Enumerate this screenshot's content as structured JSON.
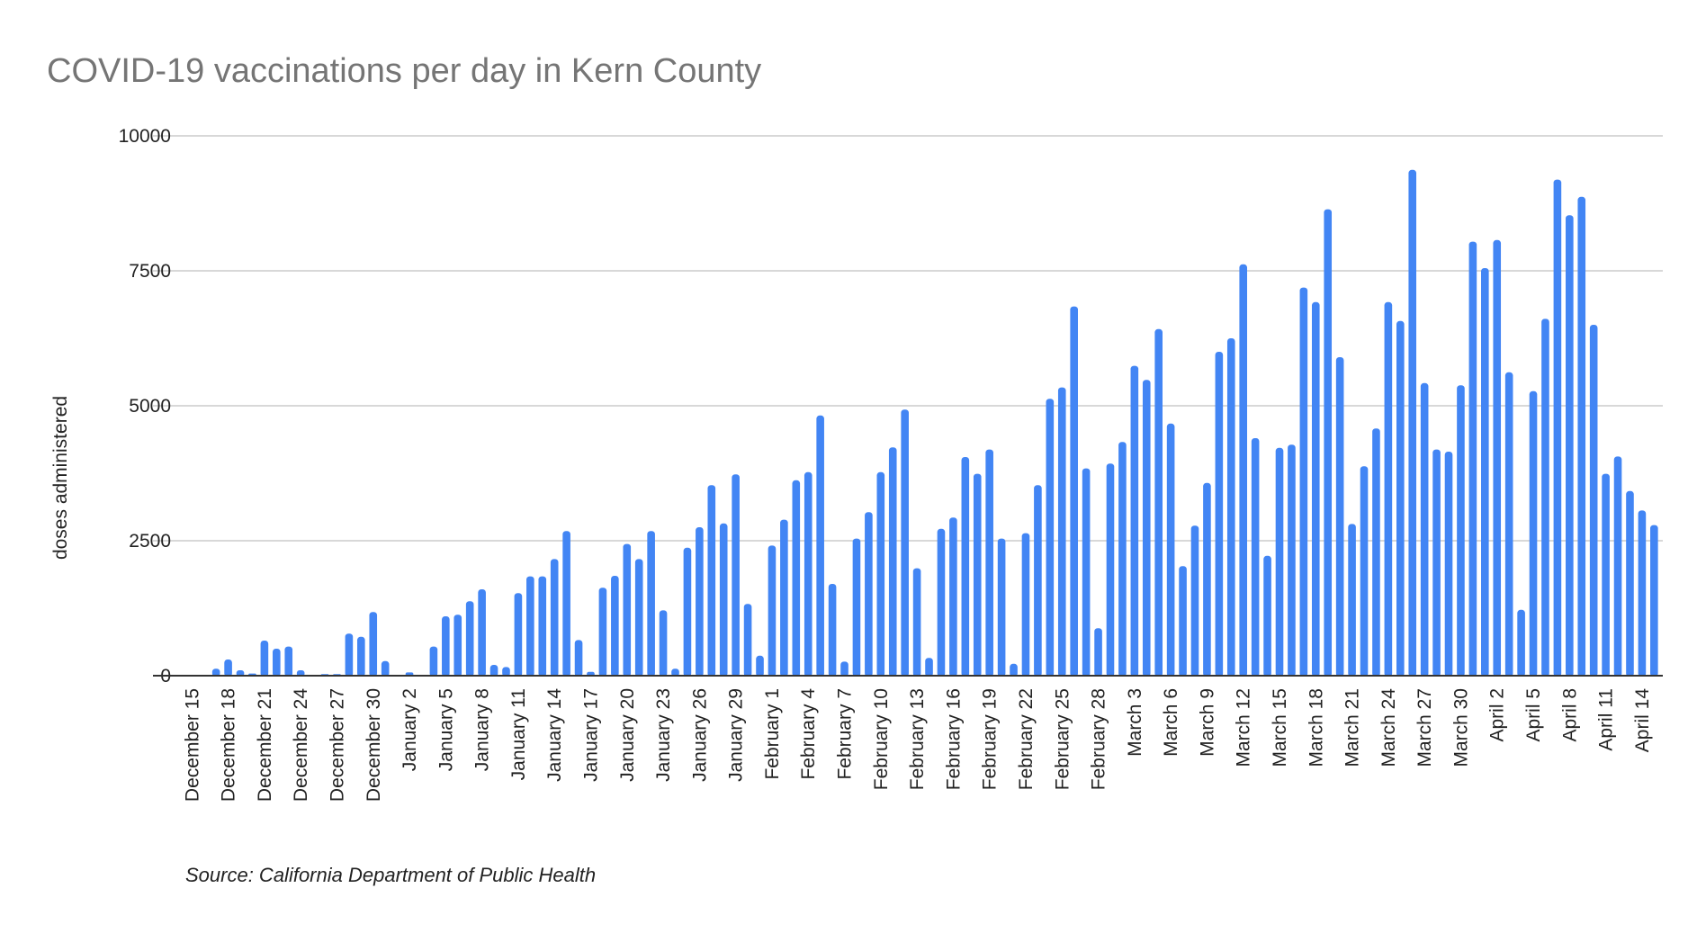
{
  "chart_data": {
    "type": "bar",
    "title": "COVID-19 vaccinations per day in Kern County",
    "xlabel": "",
    "ylabel": "doses administered",
    "ylim": [
      0,
      10000
    ],
    "yticks": [
      0,
      2500,
      5000,
      7500,
      10000
    ],
    "grid": true,
    "legend": "none",
    "bar_color": "#4285f4",
    "tick_every": 3,
    "x_tick_labels": [
      "December 15",
      "December 18",
      "December 21",
      "December 24",
      "December 27",
      "December 30",
      "January 2",
      "January 5",
      "January 8",
      "January 11",
      "January 14",
      "January 17",
      "January 20",
      "January 23",
      "January 26",
      "January 29",
      "February 1",
      "February 4",
      "February 7",
      "February 10",
      "February 13",
      "February 16",
      "February 19",
      "February 22",
      "February 25",
      "February 28",
      "March 3",
      "March 6",
      "March 9",
      "March 12",
      "March 15",
      "March 18",
      "March 21",
      "March 24",
      "March 27",
      "March 30",
      "April 2",
      "April 5",
      "April 8",
      "April 11",
      "April 14"
    ],
    "values": [
      0,
      0,
      130,
      300,
      100,
      40,
      650,
      500,
      540,
      100,
      0,
      30,
      30,
      780,
      720,
      1180,
      270,
      0,
      60,
      0,
      540,
      1100,
      1130,
      1380,
      1600,
      200,
      160,
      1530,
      1840,
      1840,
      2160,
      2680,
      660,
      70,
      1630,
      1850,
      2440,
      2160,
      2680,
      1210,
      130,
      2370,
      2750,
      3530,
      2820,
      3730,
      1330,
      370,
      2410,
      2890,
      3620,
      3770,
      4820,
      1700,
      260,
      2540,
      3030,
      3770,
      4230,
      4930,
      1990,
      330,
      2720,
      2930,
      4050,
      3740,
      4190,
      2540,
      220,
      2640,
      3530,
      5130,
      5340,
      6840,
      3840,
      880,
      3930,
      4330,
      5740,
      5480,
      6420,
      4670,
      2030,
      2780,
      3570,
      6000,
      6250,
      7620,
      4400,
      2220,
      4220,
      4280,
      7190,
      6920,
      8640,
      5900,
      2810,
      3880,
      4580,
      6920,
      6570,
      9370,
      5420,
      4190,
      4150,
      5380,
      8040,
      7550,
      8070,
      5620,
      1220,
      5270,
      6610,
      9190,
      8530,
      8870,
      6500,
      3740,
      4060,
      3420,
      3060,
      2790
    ],
    "source": "Source: California Department of Public Health"
  }
}
